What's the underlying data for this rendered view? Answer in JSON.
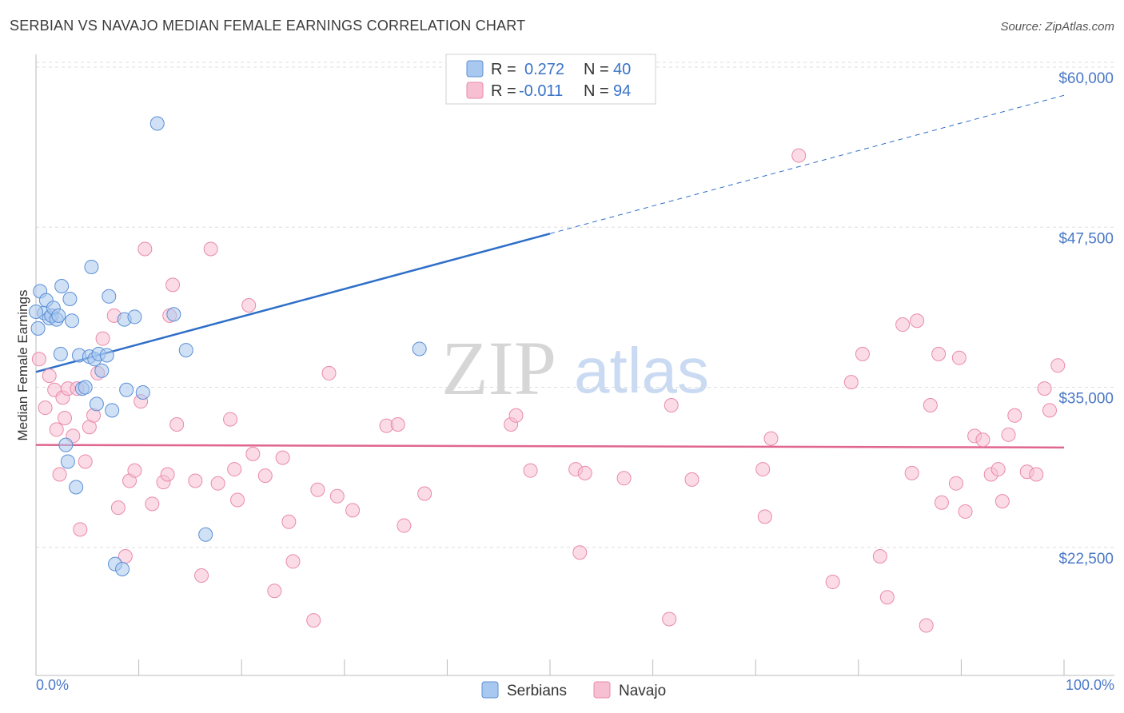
{
  "header": {
    "title": "SERBIAN VS NAVAJO MEDIAN FEMALE EARNINGS CORRELATION CHART",
    "source": "Source: ZipAtlas.com"
  },
  "watermark": {
    "zip": "ZIP",
    "atlas": "atlas"
  },
  "legend": {
    "rows": [
      {
        "r_label": "R =",
        "r_value": "0.272",
        "n_label": "N =",
        "n_value": "40"
      },
      {
        "r_label": "R =",
        "r_value": "-0.011",
        "n_label": "N =",
        "n_value": "94"
      }
    ]
  },
  "bottom_legend": {
    "serbians": "Serbians",
    "navajo": "Navajo"
  },
  "colors": {
    "serbian_fill": "#a9c8ef",
    "serbian_stroke": "#5b8fd6",
    "serbian_line": "#2f6fc8",
    "navajo_fill": "#f7c0d2",
    "navajo_stroke": "#e98aab",
    "navajo_line": "#e0668f",
    "value_text": "#3a73c8",
    "grid": "#dddddd"
  },
  "chart_data": {
    "type": "scatter",
    "title": "SERBIAN VS NAVAJO MEDIAN FEMALE EARNINGS CORRELATION CHART",
    "xlabel": "",
    "ylabel": "Median Female Earnings",
    "xlim": [
      0,
      100
    ],
    "ylim": [
      12500,
      61500
    ],
    "x_tick_labels": [
      "0.0%",
      "100.0%"
    ],
    "y_ticks": [
      {
        "value": 22500,
        "label": "$22,500"
      },
      {
        "value": 35000,
        "label": "$35,000"
      },
      {
        "value": 47500,
        "label": "$47,500"
      },
      {
        "value": 60000,
        "label": "$60,000"
      }
    ],
    "grid": true,
    "series": [
      {
        "name": "Serbians",
        "R": 0.272,
        "N": 40,
        "trend": {
          "x_start": 0,
          "y_start": 36200,
          "x_solid_end": 50,
          "y_solid_end": 47000,
          "x_end": 100,
          "y_end": 57800
        },
        "points": [
          [
            0.2,
            39600
          ],
          [
            0.4,
            42500
          ],
          [
            0.8,
            40800
          ],
          [
            1.0,
            41800
          ],
          [
            1.3,
            40400
          ],
          [
            1.5,
            40600
          ],
          [
            1.7,
            41200
          ],
          [
            2.0,
            40300
          ],
          [
            2.2,
            40600
          ],
          [
            2.4,
            37600
          ],
          [
            2.5,
            42900
          ],
          [
            2.9,
            30500
          ],
          [
            3.1,
            29200
          ],
          [
            3.3,
            41900
          ],
          [
            3.5,
            40200
          ],
          [
            3.9,
            27200
          ],
          [
            4.2,
            37500
          ],
          [
            4.5,
            34900
          ],
          [
            4.8,
            35000
          ],
          [
            5.2,
            37400
          ],
          [
            5.4,
            44400
          ],
          [
            5.7,
            37200
          ],
          [
            5.9,
            33700
          ],
          [
            6.1,
            37600
          ],
          [
            6.4,
            36300
          ],
          [
            6.9,
            37500
          ],
          [
            7.1,
            42100
          ],
          [
            7.4,
            33200
          ],
          [
            7.7,
            21200
          ],
          [
            8.4,
            20800
          ],
          [
            8.6,
            40300
          ],
          [
            8.8,
            34800
          ],
          [
            9.6,
            40500
          ],
          [
            10.4,
            34600
          ],
          [
            11.8,
            55600
          ],
          [
            13.4,
            40700
          ],
          [
            14.6,
            37900
          ],
          [
            16.5,
            23500
          ],
          [
            37.3,
            38000
          ],
          [
            0.0,
            40900
          ]
        ]
      },
      {
        "name": "Navajo",
        "R": -0.011,
        "N": 94,
        "trend": {
          "x_start": 0,
          "y_start": 30500,
          "x_end": 100,
          "y_end": 30300
        },
        "points": [
          [
            0.3,
            37200
          ],
          [
            0.9,
            33400
          ],
          [
            1.3,
            35900
          ],
          [
            1.8,
            34800
          ],
          [
            2.0,
            31700
          ],
          [
            2.3,
            28200
          ],
          [
            2.6,
            34200
          ],
          [
            2.8,
            32600
          ],
          [
            3.1,
            34900
          ],
          [
            3.6,
            31200
          ],
          [
            4.0,
            34900
          ],
          [
            4.3,
            23900
          ],
          [
            4.8,
            29200
          ],
          [
            5.2,
            31900
          ],
          [
            5.6,
            32800
          ],
          [
            6.0,
            36100
          ],
          [
            6.5,
            38800
          ],
          [
            7.6,
            40600
          ],
          [
            8.0,
            25600
          ],
          [
            8.7,
            21800
          ],
          [
            9.1,
            27700
          ],
          [
            9.6,
            28500
          ],
          [
            10.2,
            33900
          ],
          [
            10.6,
            45800
          ],
          [
            11.3,
            25900
          ],
          [
            12.4,
            27600
          ],
          [
            12.8,
            28200
          ],
          [
            13.0,
            40600
          ],
          [
            13.3,
            43000
          ],
          [
            13.7,
            32100
          ],
          [
            15.5,
            27700
          ],
          [
            16.1,
            20300
          ],
          [
            17.0,
            45800
          ],
          [
            17.7,
            27500
          ],
          [
            18.9,
            32500
          ],
          [
            19.3,
            28600
          ],
          [
            19.6,
            26200
          ],
          [
            20.7,
            41400
          ],
          [
            21.1,
            29800
          ],
          [
            22.3,
            28100
          ],
          [
            23.2,
            19100
          ],
          [
            24.0,
            29500
          ],
          [
            24.6,
            24500
          ],
          [
            25.0,
            21400
          ],
          [
            27.0,
            16800
          ],
          [
            27.4,
            27000
          ],
          [
            28.5,
            36100
          ],
          [
            29.3,
            26500
          ],
          [
            30.8,
            25400
          ],
          [
            34.1,
            32000
          ],
          [
            35.2,
            32100
          ],
          [
            35.8,
            24200
          ],
          [
            37.8,
            26700
          ],
          [
            46.2,
            32100
          ],
          [
            46.7,
            32800
          ],
          [
            48.1,
            28500
          ],
          [
            52.5,
            28600
          ],
          [
            52.9,
            22100
          ],
          [
            53.4,
            28300
          ],
          [
            57.2,
            27900
          ],
          [
            61.6,
            16900
          ],
          [
            61.8,
            33600
          ],
          [
            63.8,
            27800
          ],
          [
            70.7,
            28600
          ],
          [
            70.9,
            24900
          ],
          [
            71.5,
            31000
          ],
          [
            74.2,
            53100
          ],
          [
            77.5,
            19800
          ],
          [
            79.3,
            35400
          ],
          [
            80.4,
            37600
          ],
          [
            82.1,
            21800
          ],
          [
            82.8,
            18600
          ],
          [
            84.3,
            39900
          ],
          [
            85.2,
            28300
          ],
          [
            85.7,
            40200
          ],
          [
            86.6,
            16400
          ],
          [
            87.0,
            33600
          ],
          [
            87.8,
            37600
          ],
          [
            88.1,
            26000
          ],
          [
            89.5,
            27500
          ],
          [
            89.8,
            37300
          ],
          [
            90.4,
            25300
          ],
          [
            91.3,
            31200
          ],
          [
            92.1,
            30900
          ],
          [
            92.9,
            28200
          ],
          [
            93.6,
            28600
          ],
          [
            94.0,
            26100
          ],
          [
            94.6,
            31300
          ],
          [
            95.2,
            32800
          ],
          [
            96.4,
            28400
          ],
          [
            97.3,
            28200
          ],
          [
            98.1,
            34900
          ],
          [
            98.6,
            33200
          ],
          [
            99.4,
            36700
          ]
        ]
      }
    ]
  }
}
